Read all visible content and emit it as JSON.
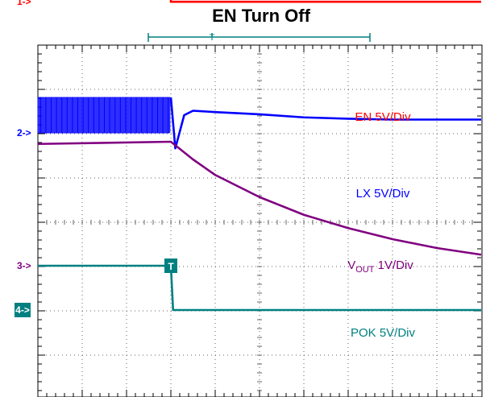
{
  "chart_data": {
    "type": "line",
    "title": "EN Turn Off",
    "grid": true,
    "divisions": {
      "x": 10,
      "y": 8
    },
    "series": [
      {
        "name": "EN 5V/Div",
        "color": "#ff0000",
        "x": [
          0,
          3.0,
          3.0,
          10
        ],
        "y": [
          6.0,
          6.0,
          4.96,
          4.96
        ]
      },
      {
        "name": "LX 5V/Div",
        "color": "#0000ff",
        "x": [
          0,
          3.0,
          3.1,
          3.3,
          3.5,
          4.0,
          5.0,
          6.0,
          7.0,
          8.0,
          9.0,
          10
        ],
        "y": [
          2.8,
          2.8,
          1.65,
          2.4,
          2.5,
          2.47,
          2.42,
          2.35,
          2.32,
          2.3,
          2.3,
          2.3
        ]
      },
      {
        "name": "V",
        "name_sub": "OUT",
        "name_suffix": " 1V/Div",
        "color": "#800080",
        "x": [
          0,
          3.0,
          3.5,
          4.0,
          5.0,
          6.0,
          7.0,
          8.0,
          9.0,
          10
        ],
        "y": [
          1.75,
          1.8,
          1.4,
          1.05,
          0.55,
          0.15,
          -0.15,
          -0.4,
          -0.6,
          -0.75
        ]
      },
      {
        "name": "POK 5V/Div",
        "color": "#008080",
        "x": [
          0,
          3.0,
          3.05,
          10
        ],
        "y": [
          -1.0,
          -1.0,
          -2.0,
          -2.0
        ]
      }
    ],
    "markers": [
      {
        "label": "1->",
        "color": "#ff0000",
        "style": "text",
        "level": 4.96
      },
      {
        "label": "2->",
        "color": "#0000ff",
        "style": "text",
        "level": 2.0
      },
      {
        "label": "3->",
        "color": "#800080",
        "style": "text",
        "level": -1.0
      },
      {
        "label": "4->",
        "color": "#008080",
        "style": "box",
        "level": -2.0
      }
    ],
    "trigger_marker": "T",
    "trigger_position": 3.0
  }
}
